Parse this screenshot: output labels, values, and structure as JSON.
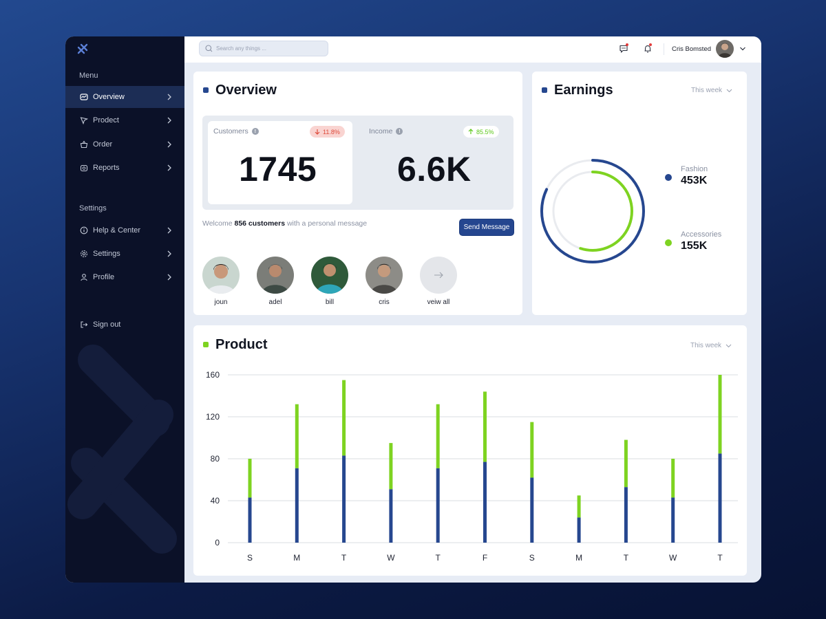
{
  "sidebar": {
    "menu_label": "Menu",
    "settings_label": "Settings",
    "menu_items": [
      {
        "label": "Overview",
        "icon": "overview-icon",
        "active": true
      },
      {
        "label": "Prodect",
        "icon": "product-icon",
        "active": false
      },
      {
        "label": "Order",
        "icon": "basket-icon",
        "active": false
      },
      {
        "label": "Reports",
        "icon": "reports-icon",
        "active": false
      }
    ],
    "settings_items": [
      {
        "label": "Help & Center",
        "icon": "info-icon"
      },
      {
        "label": "Settings",
        "icon": "gear-icon"
      },
      {
        "label": "Profile",
        "icon": "user-icon"
      }
    ],
    "signout_label": "Sign out"
  },
  "topbar": {
    "search_placeholder": "Search any things ...",
    "user_name": "Cris Bomsted"
  },
  "overview": {
    "title": "Overview",
    "customers_label": "Customers",
    "customers_value": "1745",
    "customers_change": "11.8%",
    "income_label": "Income",
    "income_value": "6.6K",
    "income_change": "85.5%",
    "welcome_prefix": "Welcome",
    "welcome_count": "856 customers",
    "welcome_suffix": "with  a personal message",
    "send_button": "Send Message",
    "people": [
      "joun",
      "adel",
      "bill",
      "cris"
    ],
    "view_all": "veiw all"
  },
  "earnings": {
    "title": "Earnings",
    "period": "This week",
    "items": [
      {
        "name": "Fashion",
        "value": "453K",
        "color": "#26478f",
        "fraction": 0.82
      },
      {
        "name": "Accessories",
        "value": "155K",
        "color": "#7ed321",
        "fraction": 0.55
      }
    ]
  },
  "product": {
    "title": "Product",
    "period": "This week"
  },
  "colors": {
    "accent_blue": "#26478f",
    "accent_green": "#7ed321"
  },
  "chart_data": {
    "type": "bar",
    "stacked": true,
    "categories": [
      "S",
      "M",
      "T",
      "W",
      "T",
      "F",
      "S",
      "M",
      "T",
      "W",
      "T"
    ],
    "series": [
      {
        "values": [
          43,
          71,
          83,
          51,
          71,
          77,
          62,
          24,
          53,
          43,
          85
        ]
      },
      {
        "values": [
          37,
          61,
          72,
          44,
          61,
          67,
          53,
          21,
          45,
          37,
          75
        ]
      }
    ],
    "ylim": [
      0,
      160
    ],
    "yticks": [
      0,
      40,
      80,
      120,
      160
    ],
    "grid": true
  }
}
